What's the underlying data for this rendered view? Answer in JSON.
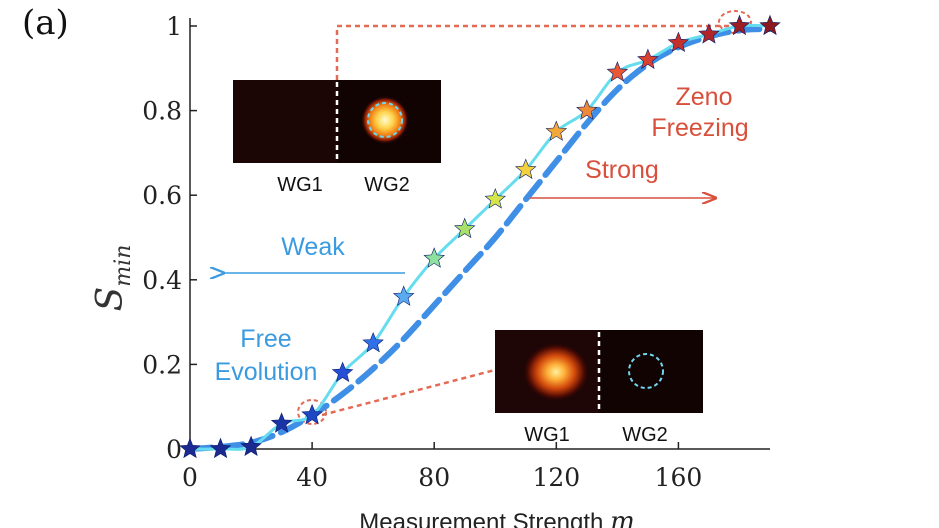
{
  "panel_label": "(a)",
  "colors": {
    "theory": "#3f8fe6",
    "simulation": "#66ddee",
    "weak": "#3a9be0",
    "strong": "#d8503c",
    "connector": "#e36a55"
  },
  "chart_data": {
    "type": "line",
    "ylabel_base": "S",
    "ylabel_sub": "min",
    "xlabel": "Measurement Strength ",
    "xlabel_var": "m",
    "xlim": [
      0,
      190
    ],
    "ylim": [
      0,
      1
    ],
    "xticks": [
      "0",
      "40",
      "80",
      "120",
      "160"
    ],
    "yticks": [
      "0",
      "0.2",
      "0.4",
      "0.6",
      "0.8",
      "1"
    ],
    "grid": false,
    "series": [
      {
        "style": "dashed-thick",
        "x": [
          0,
          10,
          20,
          30,
          40,
          50,
          60,
          70,
          80,
          90,
          100,
          110,
          120,
          130,
          140,
          150,
          160,
          170,
          180,
          190
        ],
        "y": [
          0,
          0.005,
          0.015,
          0.04,
          0.08,
          0.13,
          0.19,
          0.26,
          0.34,
          0.42,
          0.5,
          0.59,
          0.68,
          0.77,
          0.85,
          0.91,
          0.95,
          0.975,
          0.99,
          0.993
        ]
      },
      {
        "style": "solid-stars",
        "x": [
          0,
          10,
          20,
          30,
          40,
          50,
          60,
          70,
          80,
          90,
          100,
          110,
          120,
          130,
          140,
          150,
          160,
          170,
          180,
          190
        ],
        "y": [
          0,
          0,
          0.005,
          0.06,
          0.08,
          0.18,
          0.25,
          0.36,
          0.45,
          0.52,
          0.59,
          0.66,
          0.75,
          0.8,
          0.89,
          0.92,
          0.96,
          0.98,
          1.0,
          1.0
        ],
        "marker_colors": [
          "#1a2a90",
          "#1a2a90",
          "#1a2a90",
          "#1a34a8",
          "#1e47c4",
          "#2450d8",
          "#2f70e8",
          "#5aaaf0",
          "#8de09e",
          "#a8e06a",
          "#d6e64a",
          "#f2d03e",
          "#f2a83a",
          "#ee8838",
          "#e85834",
          "#d84030",
          "#c4302c",
          "#b02628",
          "#9a1e22",
          "#8a1a1e"
        ]
      }
    ],
    "annotations": {
      "zeno": [
        "Zeno",
        "Freezing"
      ],
      "strong": "Strong",
      "weak": "Weak",
      "free": [
        "Free",
        "Evolution"
      ],
      "inset_top_labels": [
        "WG1",
        "WG2"
      ],
      "inset_bottom_labels": [
        "WG1",
        "WG2"
      ]
    }
  }
}
